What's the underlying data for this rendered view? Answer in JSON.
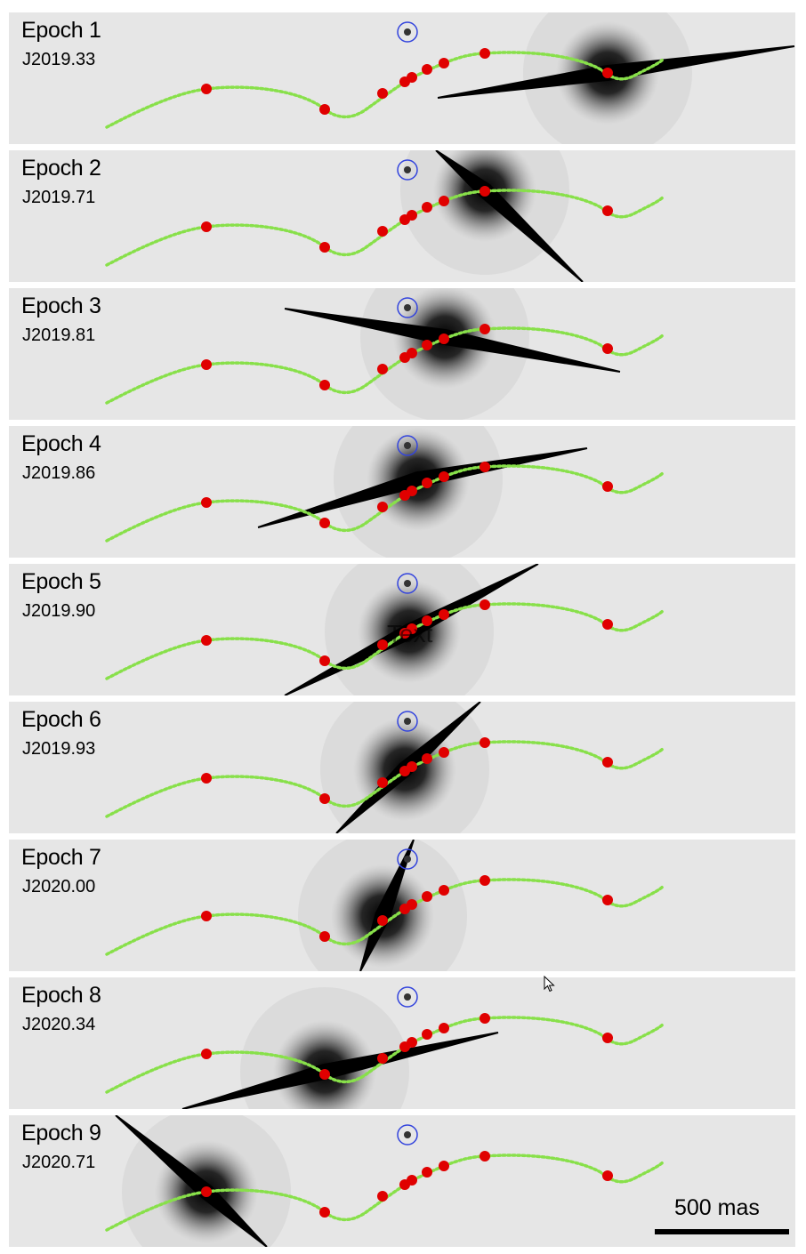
{
  "panels": [
    {
      "epoch": "Epoch 1",
      "date": "J2019.33"
    },
    {
      "epoch": "Epoch 2",
      "date": "J2019.71"
    },
    {
      "epoch": "Epoch 3",
      "date": "J2019.81"
    },
    {
      "epoch": "Epoch 4",
      "date": "J2019.86"
    },
    {
      "epoch": "Epoch 5",
      "date": "J2019.90",
      "overlay": "Text"
    },
    {
      "epoch": "Epoch 6",
      "date": "J2019.93"
    },
    {
      "epoch": "Epoch 7",
      "date": "J2020.00"
    },
    {
      "epoch": "Epoch 8",
      "date": "J2020.34"
    },
    {
      "epoch": "Epoch 9",
      "date": "J2020.71"
    }
  ],
  "scale_bar": {
    "label": "500 mas"
  },
  "colors": {
    "background": "#e6e6e6",
    "track": "#88e04a",
    "epochs": "#e00000",
    "marker_circle": "#3344dd",
    "star": "#000000"
  }
}
